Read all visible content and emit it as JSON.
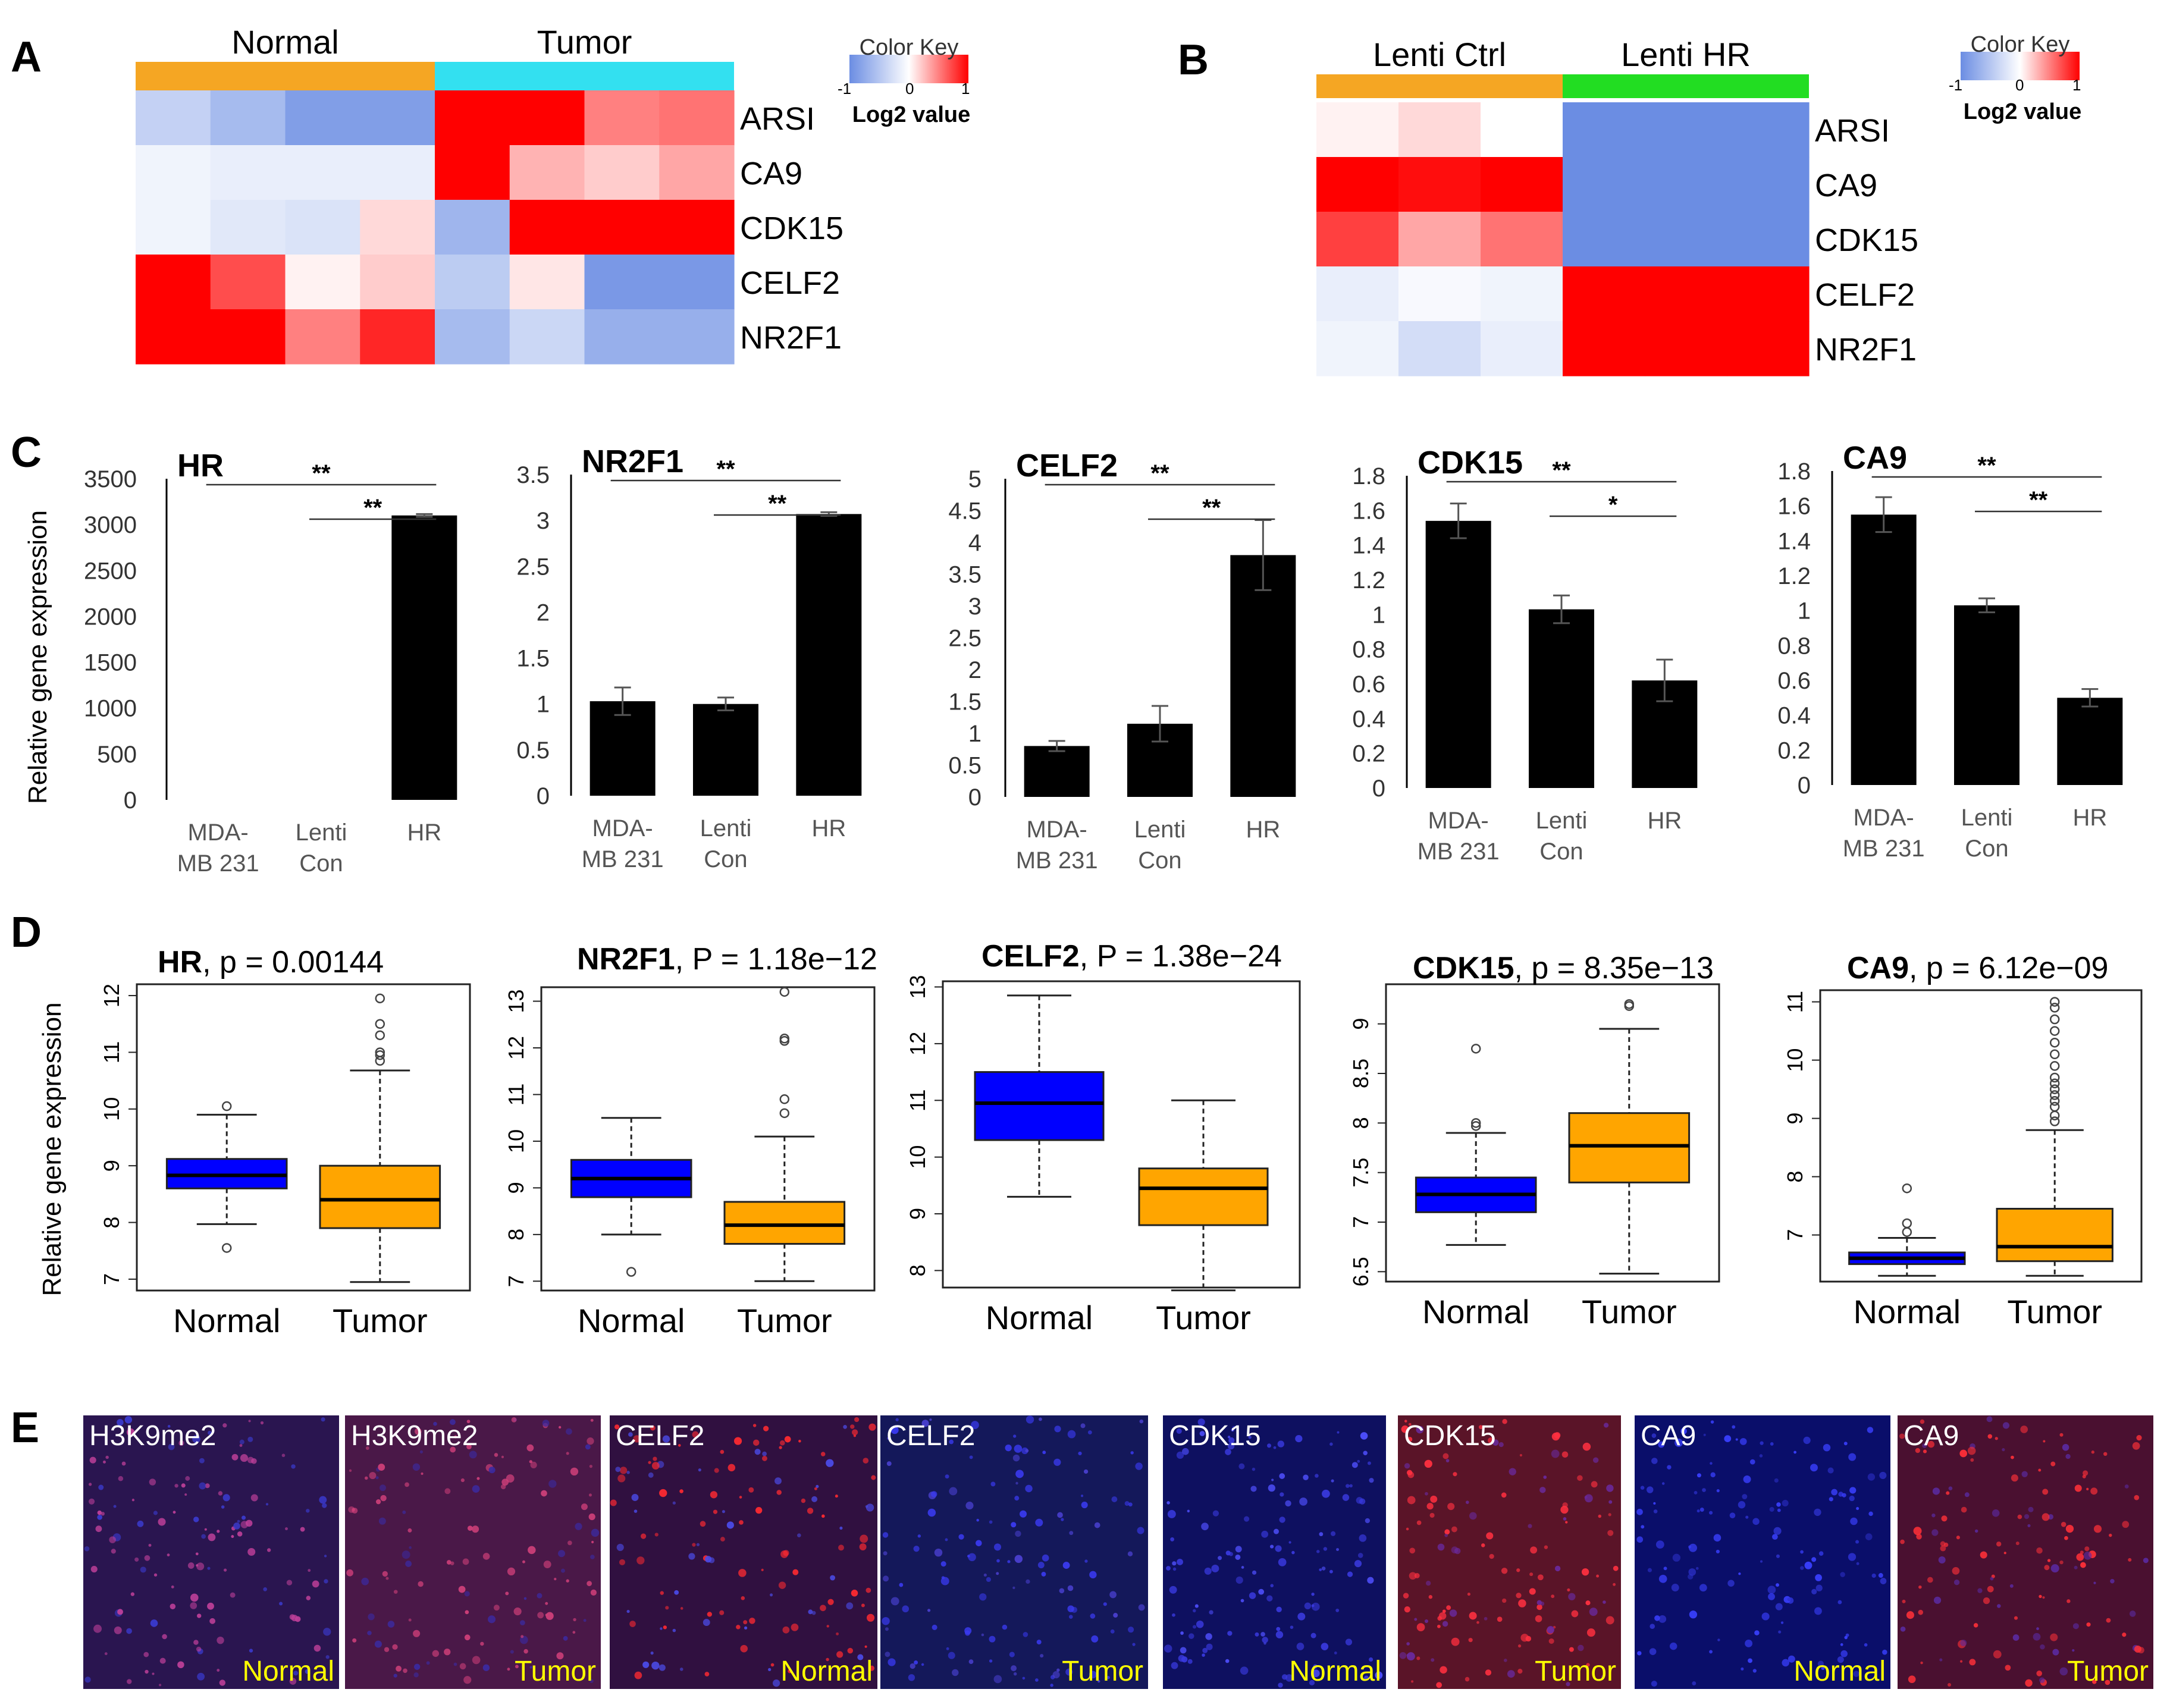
{
  "panel_labels": [
    "A",
    "B",
    "C",
    "D",
    "E"
  ],
  "colors": {
    "high": "#ff0000",
    "low": "#6b8de3",
    "mid": "#ffffff",
    "normal_bar": "#f5a623",
    "tumor_bar": "#33e0f0",
    "lenti_hr_bar": "#22dd22",
    "box_normal": "#0000ff",
    "box_tumor": "#ffa500",
    "bar": "#000000"
  },
  "color_key": {
    "title": "Color Key",
    "subtitle": "Log2 value",
    "ticks_a": [
      "-1",
      "0",
      "1"
    ],
    "ticks_b": [
      "-1",
      "0",
      "1"
    ]
  },
  "chart_data": [
    {
      "id": "A",
      "type": "heatmap",
      "groups": [
        "Normal",
        "Tumor"
      ],
      "rows": [
        "ARSI",
        "CA9",
        "CDK15",
        "CELF2",
        "NR2F1"
      ],
      "values": [
        [
          -0.4,
          -0.6,
          -0.85,
          -0.85,
          1.0,
          1.0,
          0.5,
          0.55
        ],
        [
          -0.1,
          -0.15,
          -0.15,
          -0.15,
          1.0,
          0.3,
          0.2,
          0.35
        ],
        [
          -0.1,
          -0.2,
          -0.25,
          0.15,
          -0.65,
          1.0,
          1.0,
          1.0
        ],
        [
          1.0,
          0.7,
          0.05,
          0.2,
          -0.45,
          0.1,
          -0.9,
          -0.9
        ],
        [
          1.0,
          1.0,
          0.5,
          0.85,
          -0.6,
          -0.35,
          -0.7,
          -0.7
        ]
      ]
    },
    {
      "id": "B",
      "type": "heatmap",
      "groups": [
        "Lenti Ctrl",
        "Lenti HR"
      ],
      "rows": [
        "ARSI",
        "CA9",
        "CDK15",
        "CELF2",
        "NR2F1"
      ],
      "values": [
        [
          0.05,
          0.15,
          0.0,
          -1.0,
          -1.0,
          -1.0
        ],
        [
          1.0,
          0.95,
          1.0,
          -1.0,
          -1.0,
          -1.0
        ],
        [
          0.75,
          0.35,
          0.55,
          -1.0,
          -1.0,
          -1.0
        ],
        [
          -0.15,
          -0.05,
          -0.1,
          1.0,
          1.0,
          1.0
        ],
        [
          -0.1,
          -0.3,
          -0.15,
          1.0,
          1.0,
          1.0
        ]
      ]
    },
    {
      "id": "C1",
      "type": "bar",
      "title": "HR",
      "categories": [
        [
          "MDA-",
          "MB 231"
        ],
        [
          "Lenti",
          "Con"
        ],
        [
          "HR"
        ]
      ],
      "values": [
        0,
        0,
        3100
      ],
      "errors": [
        0,
        0,
        15
      ],
      "ylim": [
        0,
        3500
      ],
      "yticks": [
        0,
        500,
        1000,
        1500,
        2000,
        2500,
        3000,
        3500
      ],
      "ylabel": "Relative gene expression",
      "sig": [
        {
          "from": 0,
          "to": 2,
          "label": "**"
        },
        {
          "from": 1,
          "to": 2,
          "label": "**"
        }
      ]
    },
    {
      "id": "C2",
      "type": "bar",
      "title": "NR2F1",
      "categories": [
        [
          "MDA-",
          "MB 231"
        ],
        [
          "Lenti",
          "Con"
        ],
        [
          "HR"
        ]
      ],
      "values": [
        1.03,
        1.0,
        3.07
      ],
      "errors": [
        0.15,
        0.07,
        0.02
      ],
      "ylim": [
        0,
        3.5
      ],
      "yticks": [
        0,
        0.5,
        1,
        1.5,
        2,
        2.5,
        3,
        3.5
      ],
      "sig": [
        {
          "from": 0,
          "to": 2,
          "label": "**"
        },
        {
          "from": 1,
          "to": 2,
          "label": "**"
        }
      ]
    },
    {
      "id": "C3",
      "type": "bar",
      "title": "CELF2",
      "categories": [
        [
          "MDA-",
          "MB 231"
        ],
        [
          "Lenti",
          "Con"
        ],
        [
          "HR"
        ]
      ],
      "values": [
        0.8,
        1.15,
        3.8
      ],
      "errors": [
        0.08,
        0.28,
        0.55
      ],
      "ylim": [
        0,
        5
      ],
      "yticks": [
        0,
        0.5,
        1,
        1.5,
        2,
        2.5,
        3,
        3.5,
        4,
        4.5,
        5
      ],
      "sig": [
        {
          "from": 0,
          "to": 2,
          "label": "**"
        },
        {
          "from": 1,
          "to": 2,
          "label": "**"
        }
      ]
    },
    {
      "id": "C4",
      "type": "bar",
      "title": "CDK15",
      "categories": [
        [
          "MDA-",
          "MB 231"
        ],
        [
          "Lenti",
          "Con"
        ],
        [
          "HR"
        ]
      ],
      "values": [
        1.54,
        1.03,
        0.62
      ],
      "errors": [
        0.1,
        0.08,
        0.12
      ],
      "ylim": [
        0,
        1.8
      ],
      "yticks": [
        0,
        0.2,
        0.4,
        0.6,
        0.8,
        1,
        1.2,
        1.4,
        1.6,
        1.8
      ],
      "sig": [
        {
          "from": 0,
          "to": 2,
          "label": "**"
        },
        {
          "from": 1,
          "to": 2,
          "label": "*"
        }
      ]
    },
    {
      "id": "C5",
      "type": "bar",
      "title": "CA9",
      "categories": [
        [
          "MDA-",
          "MB 231"
        ],
        [
          "Lenti",
          "Con"
        ],
        [
          "HR"
        ]
      ],
      "values": [
        1.55,
        1.03,
        0.5
      ],
      "errors": [
        0.1,
        0.04,
        0.05
      ],
      "ylim": [
        0,
        1.8
      ],
      "yticks": [
        0,
        0.2,
        0.4,
        0.6,
        0.8,
        1,
        1.2,
        1.4,
        1.6,
        1.8
      ],
      "sig": [
        {
          "from": 0,
          "to": 2,
          "label": "**"
        },
        {
          "from": 1,
          "to": 2,
          "label": "**"
        }
      ]
    },
    {
      "id": "D1",
      "type": "box",
      "gene": "HR",
      "stat": ", p = 0.00144",
      "categories": [
        "Normal",
        "Tumor"
      ],
      "ylim": [
        6.8,
        12.2
      ],
      "yticks": [
        7,
        8,
        9,
        10,
        11,
        12
      ],
      "ylabel": "Relative gene expression",
      "boxes": [
        {
          "q1": 8.6,
          "median": 8.83,
          "q3": 9.12,
          "wlo": 7.97,
          "whi": 9.9,
          "outliers": [
            10.05,
            7.55
          ]
        },
        {
          "q1": 7.9,
          "median": 8.4,
          "q3": 9.0,
          "wlo": 6.95,
          "whi": 10.68,
          "outliers": [
            11.95,
            11.5,
            11.3,
            11.0,
            10.95,
            10.85
          ]
        }
      ]
    },
    {
      "id": "D2",
      "type": "box",
      "gene": "NR2F1",
      "stat": ", P = 1.18e−12",
      "categories": [
        "Normal",
        "Tumor"
      ],
      "ylim": [
        6.8,
        13.3
      ],
      "yticks": [
        7,
        8,
        9,
        10,
        11,
        12,
        13
      ],
      "boxes": [
        {
          "q1": 8.8,
          "median": 9.2,
          "q3": 9.6,
          "wlo": 8.0,
          "whi": 10.5,
          "outliers": [
            7.2
          ]
        },
        {
          "q1": 7.8,
          "median": 8.2,
          "q3": 8.7,
          "wlo": 7.0,
          "whi": 10.1,
          "outliers": [
            13.2,
            12.2,
            12.15,
            10.9,
            10.6
          ]
        }
      ]
    },
    {
      "id": "D3",
      "type": "box",
      "gene": "CELF2",
      "stat": ", P = 1.38e−24",
      "categories": [
        "Normal",
        "Tumor"
      ],
      "ylim": [
        7.7,
        13.1
      ],
      "yticks": [
        8,
        9,
        10,
        11,
        12,
        13
      ],
      "boxes": [
        {
          "q1": 10.3,
          "median": 10.95,
          "q3": 11.5,
          "wlo": 9.3,
          "whi": 12.85,
          "outliers": []
        },
        {
          "q1": 8.8,
          "median": 9.45,
          "q3": 9.8,
          "wlo": 7.65,
          "whi": 11.0,
          "outliers": []
        }
      ]
    },
    {
      "id": "D4",
      "type": "box",
      "gene": "CDK15",
      "stat": ", p = 8.35e−13",
      "categories": [
        "Normal",
        "Tumor"
      ],
      "ylim": [
        6.4,
        9.4
      ],
      "yticks": [
        6.5,
        7.0,
        7.5,
        8.0,
        8.5,
        9.0
      ],
      "boxes": [
        {
          "q1": 7.1,
          "median": 7.28,
          "q3": 7.45,
          "wlo": 6.77,
          "whi": 7.9,
          "outliers": [
            8.75,
            8.0,
            7.97
          ]
        },
        {
          "q1": 7.4,
          "median": 7.77,
          "q3": 8.1,
          "wlo": 6.48,
          "whi": 8.95,
          "outliers": [
            9.2,
            9.18
          ]
        }
      ]
    },
    {
      "id": "D5",
      "type": "box",
      "gene": "CA9",
      "stat": ", p = 6.12e−09",
      "categories": [
        "Normal",
        "Tumor"
      ],
      "ylim": [
        6.2,
        11.2
      ],
      "yticks": [
        7,
        8,
        9,
        10,
        11
      ],
      "boxes": [
        {
          "q1": 6.5,
          "median": 6.6,
          "q3": 6.7,
          "wlo": 6.3,
          "whi": 6.95,
          "outliers": [
            7.8,
            7.2,
            7.05
          ]
        },
        {
          "q1": 6.55,
          "median": 6.8,
          "q3": 7.45,
          "wlo": 6.3,
          "whi": 8.8,
          "outliers": [
            11.0,
            10.9,
            10.7,
            10.5,
            10.3,
            10.1,
            9.9,
            9.7,
            9.6,
            9.5,
            9.4,
            9.3,
            9.2,
            9.05,
            8.95
          ]
        }
      ]
    }
  ],
  "if_images": [
    {
      "stain": "H3K9me2",
      "condition": "Normal",
      "bg": "#2a1550",
      "spot": "#c0409a",
      "nuc": "#3b3bd0"
    },
    {
      "stain": "H3K9me2",
      "condition": "Tumor",
      "bg": "#4a1848",
      "spot": "#d0407a",
      "nuc": "#3b2aa0"
    },
    {
      "stain": "CELF2",
      "condition": "Normal",
      "bg": "#301040",
      "spot": "#ff2a30",
      "nuc": "#4b4be8"
    },
    {
      "stain": "CELF2",
      "condition": "Tumor",
      "bg": "#14185a",
      "spot": "#3a3af0",
      "nuc": "#4a40d0"
    },
    {
      "stain": "CDK15",
      "condition": "Normal",
      "bg": "#0e1060",
      "spot": "#3a3ae0",
      "nuc": "#5050ff"
    },
    {
      "stain": "CDK15",
      "condition": "Tumor",
      "bg": "#5a1428",
      "spot": "#ff3040",
      "nuc": "#6a2aa0"
    },
    {
      "stain": "CA9",
      "condition": "Normal",
      "bg": "#0a0e6a",
      "spot": "#3a40ff",
      "nuc": "#2c30c8"
    },
    {
      "stain": "CA9",
      "condition": "Tumor",
      "bg": "#4a1030",
      "spot": "#ff3038",
      "nuc": "#5a2aa0"
    }
  ]
}
